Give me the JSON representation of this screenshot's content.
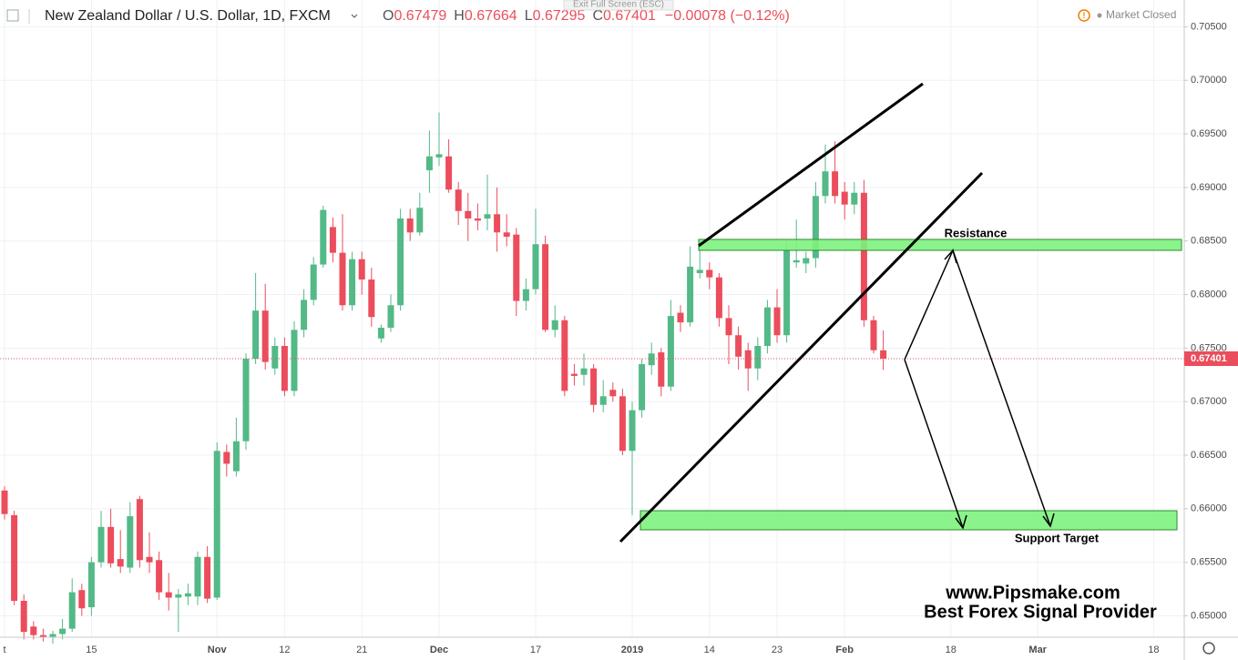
{
  "header": {
    "symbol": "New Zealand Dollar / U.S. Dollar, 1D, FXCM",
    "ohlc": [
      {
        "key": "O",
        "value": 0.67479
      },
      {
        "key": "H",
        "value": 0.67664
      },
      {
        "key": "L",
        "value": 0.67295
      },
      {
        "key": "C",
        "value": 0.67401
      }
    ],
    "change": "−0.00078 (−0.12%)",
    "exit_full_screen": "Exit Full Screen (ESC)",
    "market_status": "Market Closed"
  },
  "chart_data": {
    "type": "candlestick",
    "up_color": "#53b987",
    "down_color": "#eb4d5c",
    "grid": true,
    "categories": [
      "t",
      null,
      null,
      null,
      null,
      null,
      null,
      null,
      null,
      "15",
      null,
      null,
      null,
      null,
      null,
      null,
      null,
      null,
      null,
      null,
      null,
      null,
      "Nov",
      null,
      null,
      null,
      null,
      null,
      null,
      "12",
      null,
      null,
      null,
      null,
      null,
      null,
      null,
      "21",
      null,
      null,
      null,
      null,
      null,
      null,
      null,
      "Dec",
      null,
      null,
      null,
      null,
      null,
      null,
      null,
      null,
      null,
      "17",
      null,
      null,
      null,
      null,
      null,
      null,
      null,
      null,
      null,
      "2019",
      null,
      null,
      null,
      null,
      null,
      null,
      null,
      "14",
      null,
      null,
      null,
      null,
      null,
      null,
      "23",
      null,
      null,
      null,
      null,
      null,
      null,
      "Feb",
      null,
      null,
      null,
      null,
      null,
      null,
      null,
      null,
      null,
      null,
      "18",
      null,
      null,
      null,
      null,
      null,
      null,
      null,
      null,
      "Mar",
      null,
      null,
      null,
      null,
      null,
      null,
      null,
      null,
      null,
      null,
      null,
      "18",
      null,
      null,
      null
    ],
    "open": [
      0.6617,
      0.6594,
      0.6514,
      0.649,
      0.6482,
      0.648,
      0.6483,
      0.6488,
      0.6524,
      0.6508,
      0.655,
      0.6583,
      0.6553,
      0.6545,
      0.6609,
      0.6555,
      0.6552,
      0.6522,
      0.6517,
      0.6518,
      0.6518,
      0.6555,
      0.6517,
      0.6653,
      0.6635,
      0.6663,
      0.674,
      0.6785,
      0.6731,
      0.6752,
      0.671,
      0.6767,
      0.6795,
      0.6828,
      0.6863,
      0.6839,
      0.679,
      0.6833,
      0.6814,
      0.6759,
      0.6769,
      0.679,
      0.6871,
      0.6858,
      0.6916,
      0.6928,
      0.6929,
      0.6898,
      0.6878,
      0.6871,
      0.6871,
      0.6875,
      0.6858,
      0.6856,
      0.6794,
      0.6805,
      0.6847,
      0.6767,
      0.6776,
      0.6726,
      0.6725,
      0.6731,
      0.6697,
      0.6711,
      0.6705,
      0.6654,
      0.6692,
      0.6734,
      0.6746,
      0.6714,
      0.6783,
      0.6774,
      0.682,
      0.6823,
      0.6816,
      0.6778,
      0.6762,
      0.6748,
      0.6731,
      0.6752,
      0.6788,
      0.6762,
      0.683,
      0.6829,
      0.6834,
      0.6892,
      0.6915,
      0.6896,
      0.6884,
      0.6895,
      0.6776,
      0.67479,
      null,
      null,
      null,
      null,
      null,
      null,
      null,
      null,
      null,
      null,
      null,
      null,
      null,
      null,
      null,
      null,
      null,
      null,
      null,
      null,
      null,
      null,
      null,
      null,
      null,
      null,
      null,
      null,
      null,
      null,
      null
    ],
    "high": [
      0.6621,
      0.6598,
      0.652,
      0.6495,
      0.6488,
      0.6486,
      0.6497,
      0.6535,
      0.653,
      0.6555,
      0.6598,
      0.66,
      0.658,
      0.6606,
      0.6612,
      0.6578,
      0.656,
      0.654,
      0.6525,
      0.653,
      0.656,
      0.6565,
      0.6662,
      0.666,
      0.6685,
      0.6745,
      0.682,
      0.681,
      0.676,
      0.676,
      0.6775,
      0.6805,
      0.6835,
      0.6883,
      0.6872,
      0.6875,
      0.684,
      0.684,
      0.6825,
      0.6772,
      0.68,
      0.688,
      0.688,
      0.6895,
      0.6953,
      0.697,
      0.6945,
      0.6905,
      0.6895,
      0.6885,
      0.6912,
      0.69,
      0.6875,
      0.6862,
      0.6815,
      0.688,
      0.6855,
      0.679,
      0.678,
      0.6735,
      0.6745,
      0.6735,
      0.672,
      0.6718,
      0.6712,
      0.67,
      0.674,
      0.6755,
      0.675,
      0.6795,
      0.679,
      0.6845,
      0.685,
      0.683,
      0.682,
      0.679,
      0.677,
      0.6755,
      0.676,
      0.6795,
      0.6805,
      0.685,
      0.687,
      0.684,
      0.6905,
      0.694,
      0.6943,
      0.6905,
      0.6905,
      0.6907,
      0.678,
      0.67664,
      null,
      null,
      null,
      null,
      null,
      null,
      null,
      null,
      null,
      null,
      null,
      null,
      null,
      null,
      null,
      null,
      null,
      null,
      null,
      null,
      null,
      null,
      null,
      null,
      null,
      null,
      null,
      null,
      null,
      null,
      null
    ],
    "low": [
      0.659,
      0.651,
      0.6478,
      0.6478,
      0.6476,
      0.6474,
      0.6478,
      0.6485,
      0.65,
      0.65,
      0.6545,
      0.6545,
      0.654,
      0.654,
      0.6545,
      0.654,
      0.6515,
      0.6505,
      0.6485,
      0.651,
      0.651,
      0.6512,
      0.6515,
      0.663,
      0.663,
      0.6655,
      0.6735,
      0.673,
      0.6725,
      0.6705,
      0.6705,
      0.676,
      0.679,
      0.6825,
      0.683,
      0.6785,
      0.6785,
      0.68,
      0.677,
      0.6755,
      0.6765,
      0.6785,
      0.685,
      0.6855,
      0.6895,
      0.692,
      0.6895,
      0.6865,
      0.685,
      0.686,
      0.686,
      0.684,
      0.6845,
      0.678,
      0.6785,
      0.68,
      0.6765,
      0.676,
      0.6705,
      0.6715,
      0.6715,
      0.669,
      0.669,
      0.67,
      0.665,
      0.6594,
      0.6685,
      0.6725,
      0.6705,
      0.671,
      0.6765,
      0.677,
      0.6815,
      0.6805,
      0.677,
      0.6735,
      0.673,
      0.671,
      0.672,
      0.6745,
      0.6755,
      0.6755,
      0.6825,
      0.682,
      0.6825,
      0.6885,
      0.6885,
      0.687,
      0.6875,
      0.677,
      0.6745,
      0.67295,
      null,
      null,
      null,
      null,
      null,
      null,
      null,
      null,
      null,
      null,
      null,
      null,
      null,
      null,
      null,
      null,
      null,
      null,
      null,
      null,
      null,
      null,
      null,
      null,
      null,
      null,
      null,
      null,
      null,
      null,
      null
    ],
    "close": [
      0.6595,
      0.6514,
      0.6485,
      0.6482,
      0.648,
      0.6483,
      0.6488,
      0.6522,
      0.6507,
      0.655,
      0.6583,
      0.6549,
      0.6546,
      0.6593,
      0.6552,
      0.655,
      0.6522,
      0.6517,
      0.652,
      0.6521,
      0.6555,
      0.6516,
      0.6654,
      0.6642,
      0.6663,
      0.674,
      0.6785,
      0.6737,
      0.6752,
      0.671,
      0.6767,
      0.6795,
      0.6828,
      0.6879,
      0.6839,
      0.679,
      0.6833,
      0.6814,
      0.6779,
      0.6769,
      0.679,
      0.6871,
      0.6858,
      0.6881,
      0.6929,
      0.6931,
      0.6898,
      0.6878,
      0.6871,
      0.6869,
      0.6875,
      0.6858,
      0.6854,
      0.6794,
      0.6805,
      0.6847,
      0.6767,
      0.6776,
      0.671,
      0.6724,
      0.6731,
      0.6697,
      0.6705,
      0.6705,
      0.6654,
      0.6692,
      0.6735,
      0.6745,
      0.6714,
      0.678,
      0.6774,
      0.6826,
      0.6823,
      0.6816,
      0.6778,
      0.6762,
      0.6742,
      0.6731,
      0.6752,
      0.6788,
      0.6762,
      0.6841,
      0.6832,
      0.6834,
      0.6892,
      0.6915,
      0.6892,
      0.6884,
      0.6895,
      0.6776,
      0.6748,
      0.67401,
      null,
      null,
      null,
      null,
      null,
      null,
      null,
      null,
      null,
      null,
      null,
      null,
      null,
      null,
      null,
      null,
      null,
      null,
      null,
      null,
      null,
      null,
      null,
      null,
      null,
      null,
      null,
      null,
      null,
      null,
      null
    ],
    "last_price": 0.67401,
    "ylim": [
      0.648,
      0.7075
    ],
    "yticks": [
      {
        "value": 0.65,
        "label": "0.65000"
      },
      {
        "value": 0.655,
        "label": "0.65500"
      },
      {
        "value": 0.66,
        "label": "0.66000"
      },
      {
        "value": 0.665,
        "label": "0.66500"
      },
      {
        "value": 0.67,
        "label": "0.67000"
      },
      {
        "value": 0.675,
        "label": "0.67500"
      },
      {
        "value": 0.68,
        "label": "0.68000"
      },
      {
        "value": 0.685,
        "label": "0.68500"
      },
      {
        "value": 0.69,
        "label": "0.69000"
      },
      {
        "value": 0.695,
        "label": "0.69500"
      },
      {
        "value": 0.7,
        "label": "0.70000"
      },
      {
        "value": 0.705,
        "label": "0.70500"
      }
    ],
    "annotations": [
      "Resistance",
      "Support Target"
    ],
    "watermark": [
      "www.Pipsmake.com",
      "Best Forex Signal Provider"
    ]
  }
}
